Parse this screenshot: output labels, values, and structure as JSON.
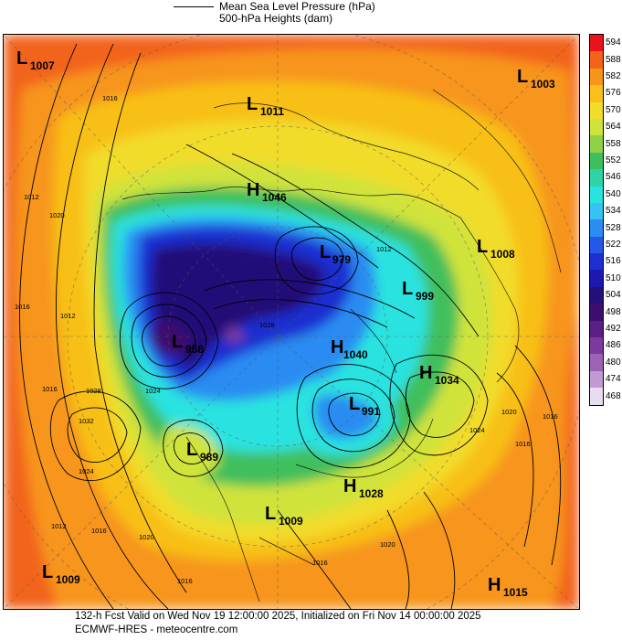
{
  "header": {
    "line1": "Mean Sea Level Pressure (hPa)",
    "line2": "500-hPa Heights (dam)"
  },
  "footer": {
    "line1": "132-h Fcst Valid on Wed Nov 19 12:00:00 2025, Initialized on Fri Nov 14 00:00:00 2025",
    "line2": "ECMWF-HRES  - meteocentre.com"
  },
  "colorbar": {
    "levels": [
      "594",
      "588",
      "582",
      "576",
      "570",
      "564",
      "558",
      "552",
      "546",
      "540",
      "534",
      "528",
      "522",
      "516",
      "510",
      "504",
      "498",
      "492",
      "486",
      "480",
      "474",
      "468"
    ],
    "colors": [
      "#e8131c",
      "#f2641a",
      "#f7951a",
      "#f8c019",
      "#f2dc2b",
      "#d0e33b",
      "#8fd24a",
      "#3fbf5b",
      "#2fd3a6",
      "#29e3e0",
      "#35c3f2",
      "#2b8cf2",
      "#2558e6",
      "#1e2fd0",
      "#1c18b0",
      "#241178",
      "#3d0e6e",
      "#5b1e86",
      "#7c3a9c",
      "#9c62b6",
      "#c29ad2",
      "#e8dcef"
    ]
  },
  "centers": {
    "L1007": {
      "type": "L",
      "value": "1007"
    },
    "L1003": {
      "type": "L",
      "value": "1003"
    },
    "L1011": {
      "type": "L",
      "value": "1011"
    },
    "H1046": {
      "type": "H",
      "value": "1046"
    },
    "L979": {
      "type": "L",
      "value": "979"
    },
    "L1008": {
      "type": "L",
      "value": "1008"
    },
    "L999": {
      "type": "L",
      "value": "999"
    },
    "L958": {
      "type": "L",
      "value": "958"
    },
    "H1040": {
      "type": "H",
      "value": "1040"
    },
    "H1034": {
      "type": "H",
      "value": "1034"
    },
    "L991": {
      "type": "L",
      "value": "991"
    },
    "L989": {
      "type": "L",
      "value": "989"
    },
    "H1028": {
      "type": "H",
      "value": "1028"
    },
    "L1009a": {
      "type": "L",
      "value": "1009"
    },
    "L1009b": {
      "type": "L",
      "value": "1009"
    },
    "H1015": {
      "type": "H",
      "value": "1015"
    }
  },
  "isobar_labels": [
    "1016",
    "1012",
    "1020",
    "1016",
    "1012",
    "1016",
    "1024",
    "1028",
    "1032",
    "1024",
    "1016",
    "1020",
    "1028",
    "1024",
    "1020",
    "1016",
    "1012",
    "1016",
    "1012",
    "1016",
    "1020",
    "1016"
  ]
}
